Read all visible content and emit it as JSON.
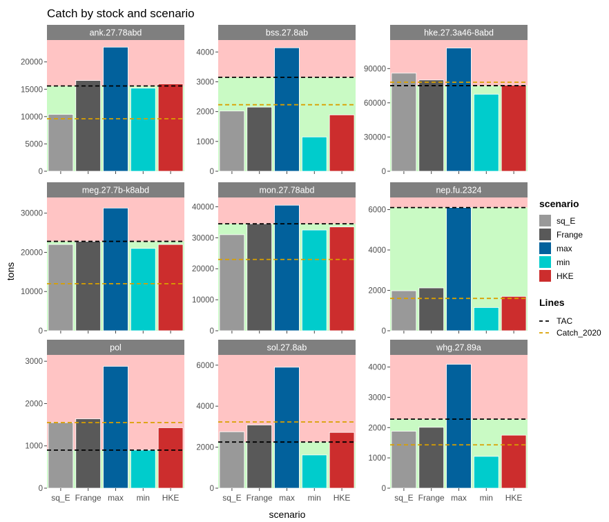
{
  "chart_data": {
    "type": "bar",
    "title": "Catch by stock and scenario",
    "xlabel": "scenario",
    "ylabel": "tons",
    "categories": [
      "sq_E",
      "Frange",
      "max",
      "min",
      "HKE"
    ],
    "scenario_legend": {
      "title": "scenario",
      "items": [
        {
          "label": "sq_E",
          "color": "#999999"
        },
        {
          "label": "Frange",
          "color": "#595959"
        },
        {
          "label": "max",
          "color": "#02619C"
        },
        {
          "label": "min",
          "color": "#00CCCC"
        },
        {
          "label": "HKE",
          "color": "#CC2D2D"
        }
      ]
    },
    "lines_legend": {
      "title": "Lines",
      "items": [
        {
          "label": "TAC",
          "color": "#000000"
        },
        {
          "label": "Catch_2020",
          "color": "#D9A000"
        }
      ]
    },
    "background_colors": {
      "above": "#FFC4C4",
      "below": "#C9FAC4"
    },
    "panels": [
      {
        "stock": "ank.27.78abd",
        "ylim": [
          0,
          24000
        ],
        "yticks": [
          0,
          5000,
          10000,
          15000,
          20000
        ],
        "values": [
          10400,
          16600,
          22700,
          15200,
          16000
        ],
        "tac": 15600,
        "catch_2020": 9600
      },
      {
        "stock": "bss.27.8ab",
        "ylim": [
          0,
          4400
        ],
        "yticks": [
          0,
          1000,
          2000,
          3000,
          4000
        ],
        "values": [
          2020,
          2150,
          4140,
          1150,
          1890
        ],
        "tac": 3150,
        "catch_2020": 2230
      },
      {
        "stock": "hke.27.3a46-8abd",
        "ylim": [
          0,
          115000
        ],
        "yticks": [
          0,
          30000,
          60000,
          90000
        ],
        "values": [
          86000,
          80000,
          108000,
          67500,
          75500
        ],
        "tac": 75000,
        "catch_2020": 78000
      },
      {
        "stock": "meg.27.7b-k8abd",
        "ylim": [
          0,
          34000
        ],
        "yticks": [
          0,
          10000,
          20000,
          30000
        ],
        "values": [
          22000,
          22800,
          31300,
          21000,
          22000
        ],
        "tac": 22800,
        "catch_2020": 12000
      },
      {
        "stock": "mon.27.78abd",
        "ylim": [
          0,
          43000
        ],
        "yticks": [
          0,
          10000,
          20000,
          30000,
          40000
        ],
        "values": [
          31000,
          34500,
          40500,
          32500,
          33500
        ],
        "tac": 34500,
        "catch_2020": 23000
      },
      {
        "stock": "nep.fu.2324",
        "ylim": [
          0,
          6600
        ],
        "yticks": [
          0,
          2000,
          4000,
          6000
        ],
        "values": [
          1980,
          2120,
          6100,
          1150,
          1700
        ],
        "tac": 6100,
        "catch_2020": 1600
      },
      {
        "stock": "pol",
        "ylim": [
          0,
          3150
        ],
        "yticks": [
          0,
          1000,
          2000,
          3000
        ],
        "values": [
          1550,
          1640,
          2880,
          900,
          1430
        ],
        "tac": 900,
        "catch_2020": 1550
      },
      {
        "stock": "sol.27.8ab",
        "ylim": [
          0,
          6500
        ],
        "yticks": [
          0,
          2000,
          4000,
          6000
        ],
        "values": [
          2750,
          3080,
          5900,
          1620,
          2720
        ],
        "tac": 2250,
        "catch_2020": 3230
      },
      {
        "stock": "whg.27.89a",
        "ylim": [
          0,
          4400
        ],
        "yticks": [
          0,
          1000,
          2000,
          3000,
          4000
        ],
        "values": [
          1880,
          2010,
          4090,
          1050,
          1750
        ],
        "tac": 2280,
        "catch_2020": 1430
      }
    ]
  }
}
